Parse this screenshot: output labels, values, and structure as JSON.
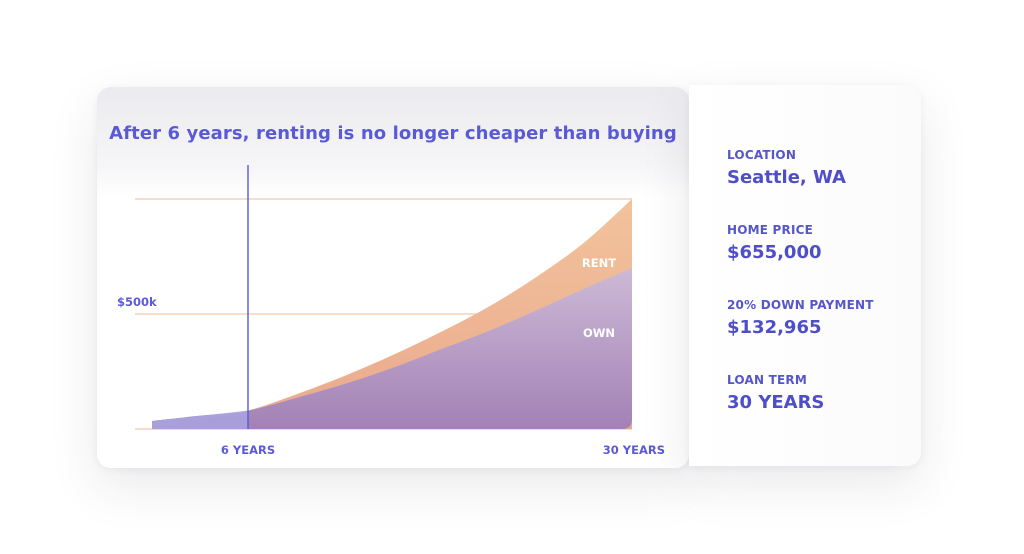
{
  "chart_data": {
    "type": "area",
    "title": "After 6 years, renting is no longer cheaper than buying",
    "xlabel": "",
    "ylabel": "",
    "x_ticks": [
      {
        "x": 6,
        "label": "6 YEARS"
      },
      {
        "x": 30,
        "label": "30 YEARS"
      }
    ],
    "y_ticks": [
      {
        "y": 500000,
        "label": "$500k"
      }
    ],
    "xlim": [
      0,
      30
    ],
    "ylim": [
      0,
      1000000
    ],
    "grid": true,
    "marker_x": 6,
    "x": [
      0,
      3,
      6,
      9,
      12,
      15,
      18,
      21,
      24,
      27,
      30
    ],
    "series": [
      {
        "name": "RENT",
        "color": "#f2bf98",
        "values": [
          0,
          40000,
          80000,
          150000,
          230000,
          320000,
          420000,
          530000,
          660000,
          810000,
          1000000
        ]
      },
      {
        "name": "OWN",
        "color": "#a887bc",
        "values": [
          35000,
          58000,
          80000,
          135000,
          195000,
          265000,
          345000,
          425000,
          515000,
          610000,
          700000
        ]
      }
    ],
    "series_colors_top": {
      "RENT": "#f0bf96",
      "OWN": "#c9b8dc"
    },
    "marker_color": "#5a5ad6",
    "grid_color": "#f0c8aa"
  },
  "info": [
    {
      "label": "LOCATION",
      "value": "Seattle, WA"
    },
    {
      "label": "HOME PRICE",
      "value": "$655,000"
    },
    {
      "label": "20% DOWN PAYMENT",
      "value": "$132,965"
    },
    {
      "label": "LOAN TERM",
      "value": "30 YEARS"
    }
  ]
}
